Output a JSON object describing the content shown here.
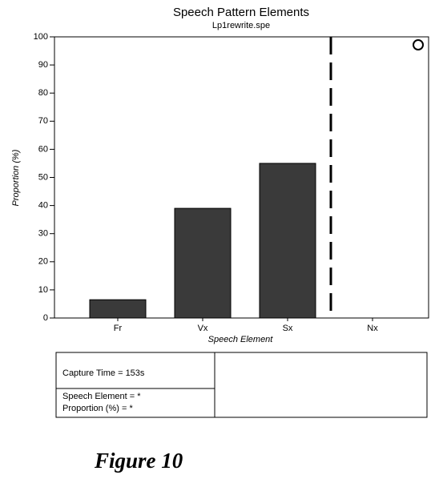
{
  "chart_data": {
    "type": "bar",
    "title": "Speech Pattern Elements",
    "subtitle": "Lp1rewrite.spe",
    "ylabel": "Proportion (%)",
    "xlabel": "Speech Element",
    "categories": [
      "Fr",
      "Vx",
      "Sx",
      "Nx"
    ],
    "values": [
      6.5,
      39,
      55,
      null
    ],
    "color": "#3a3a3a",
    "ylim": [
      0,
      100
    ],
    "yticks": [
      0,
      10,
      20,
      30,
      40,
      50,
      60,
      70,
      80,
      90,
      100
    ]
  },
  "info": {
    "capture_time": "Capture Time = 153s",
    "element": "Speech Element = *",
    "proportion": "Proportion (%) = *"
  },
  "caption": "Figure 10"
}
